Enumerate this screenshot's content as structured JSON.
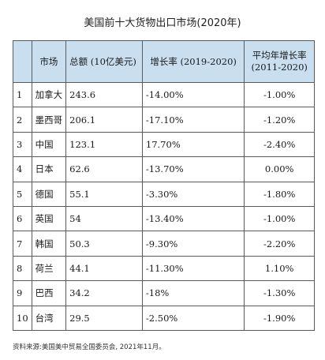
{
  "chart_data": {
    "type": "table",
    "title": "美国前十大货物出口市场(2020年)",
    "columns": [
      "",
      "市场",
      "总额 (10亿美元)",
      "增长率 (2019-2020)",
      "平均年增长率 (2011-2020)"
    ],
    "header": {
      "market": "市场",
      "total": "总额 (10亿美元)",
      "growth": "增长率 (2019-2020)",
      "avg_line1": "平均年增长率",
      "avg_line2": "(2011-2020)"
    },
    "rows": [
      {
        "idx": "1",
        "market": "加拿大",
        "total": "243.6",
        "growth": "-14.00%",
        "avg": "-1.00%"
      },
      {
        "idx": "2",
        "market": "墨西哥",
        "total": "206.1",
        "growth": "-17.10%",
        "avg": "-1.20%"
      },
      {
        "idx": "3",
        "market": "中国",
        "total": "123.1",
        "growth": "17.70%",
        "avg": "-2.40%"
      },
      {
        "idx": "4",
        "market": "日本",
        "total": "62.6",
        "growth": "-13.70%",
        "avg": "0.00%"
      },
      {
        "idx": "5",
        "market": "德国",
        "total": "55.1",
        "growth": "-3.30%",
        "avg": "-1.80%"
      },
      {
        "idx": "6",
        "market": "英国",
        "total": "54",
        "growth": "-13.40%",
        "avg": "-1.00%"
      },
      {
        "idx": "7",
        "market": "韩国",
        "total": "50.3",
        "growth": "-9.30%",
        "avg": "-2.20%"
      },
      {
        "idx": "8",
        "market": "荷兰",
        "total": "44.1",
        "growth": "-11.30%",
        "avg": "1.10%"
      },
      {
        "idx": "9",
        "market": "巴西",
        "total": "34.2",
        "growth": "-18%",
        "avg": "-1.30%"
      },
      {
        "idx": "10",
        "market": "台湾",
        "total": "29.5",
        "growth": "-2.50%",
        "avg": "-1.90%"
      }
    ],
    "source": "资料来源:美国美中贸易全国委员会, 2021年11月。",
    "colors": {
      "header_background": "#c9dff0",
      "border": "#5a5a5a"
    }
  }
}
